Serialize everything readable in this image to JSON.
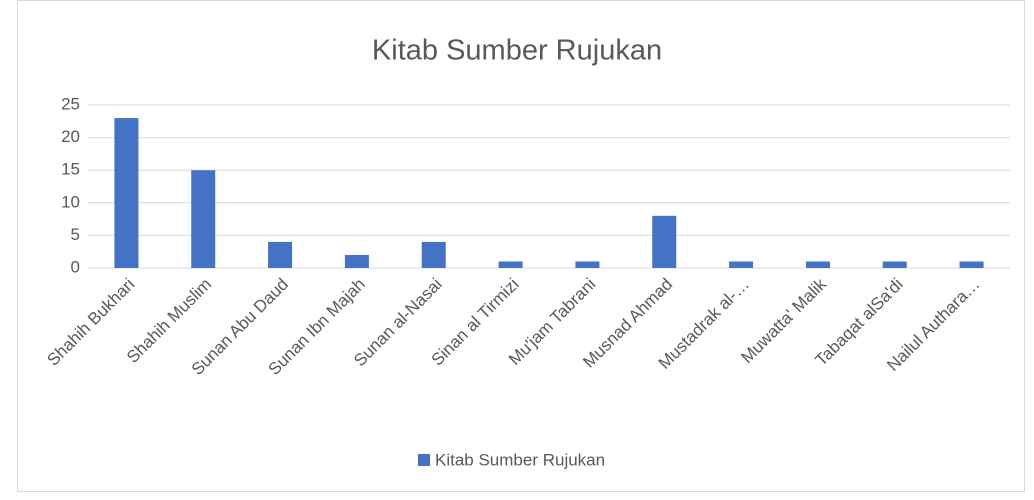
{
  "chart_data": {
    "type": "bar",
    "title": "Kitab Sumber Rujukan",
    "categories": [
      "Shahih Bukhari",
      "Shahih Muslim",
      "Sunan Abu Daud",
      "Sunan Ibn Majah",
      "Sunan al-Nasai",
      "Sinan al Tirmizi",
      "Mu'jam Tabrani",
      "Musnad Ahmad",
      "Mustadrak al-…",
      "Muwatta' Malik",
      "Tabaqat alSa'di",
      "Nailul Authara…"
    ],
    "series": [
      {
        "name": "Kitab Sumber Rujukan",
        "color": "#4472c4",
        "values": [
          23,
          15,
          4,
          2,
          4,
          1,
          1,
          8,
          1,
          1,
          1,
          1
        ]
      }
    ],
    "ylim": [
      0,
      25
    ],
    "yticks": [
      0,
      5,
      10,
      15,
      20,
      25
    ],
    "grid": true,
    "legend": "bottom"
  }
}
